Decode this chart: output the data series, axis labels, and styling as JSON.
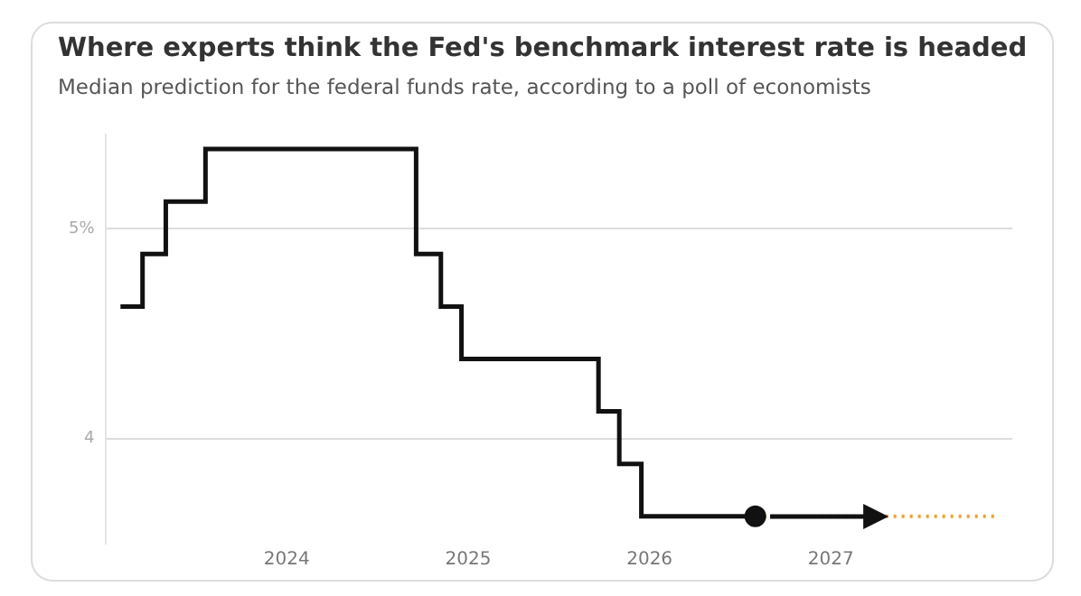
{
  "chart_data": {
    "type": "step",
    "title": "Where experts think the Fed's benchmark interest rate is headed",
    "subtitle": "Median prediction for the federal funds rate, according to a poll of economists",
    "xlim": [
      "2023-01",
      "2028-01"
    ],
    "xticks": [
      "2024",
      "2025",
      "2026",
      "2027"
    ],
    "ylim": [
      3.5,
      5.45
    ],
    "yticks": [
      4,
      {
        "value": 5,
        "label": "5%"
      }
    ],
    "grid": "y",
    "series": [
      {
        "color": "#111111",
        "line_style": "solid",
        "x": [
          "2023-02",
          "2023-03-15",
          "2023-05",
          "2023-07-20",
          "2024-09-18",
          "2024-11-07",
          "2024-12-18",
          "2025-09-20",
          "2025-11-01",
          "2025-12-15",
          "2026-08"
        ],
        "values": [
          4.63,
          4.88,
          5.13,
          5.38,
          4.88,
          4.63,
          4.38,
          4.13,
          3.88,
          3.63,
          3.63
        ]
      },
      {
        "type": "scatter",
        "color": "#111111",
        "marker": "circle",
        "x": [
          "2026-08"
        ],
        "values": [
          3.63
        ]
      },
      {
        "type": "line",
        "color": "#f0a030",
        "line_style": "dotted",
        "x": [
          "2026-08",
          "2027-12"
        ],
        "values": [
          3.63,
          3.63
        ]
      }
    ]
  }
}
